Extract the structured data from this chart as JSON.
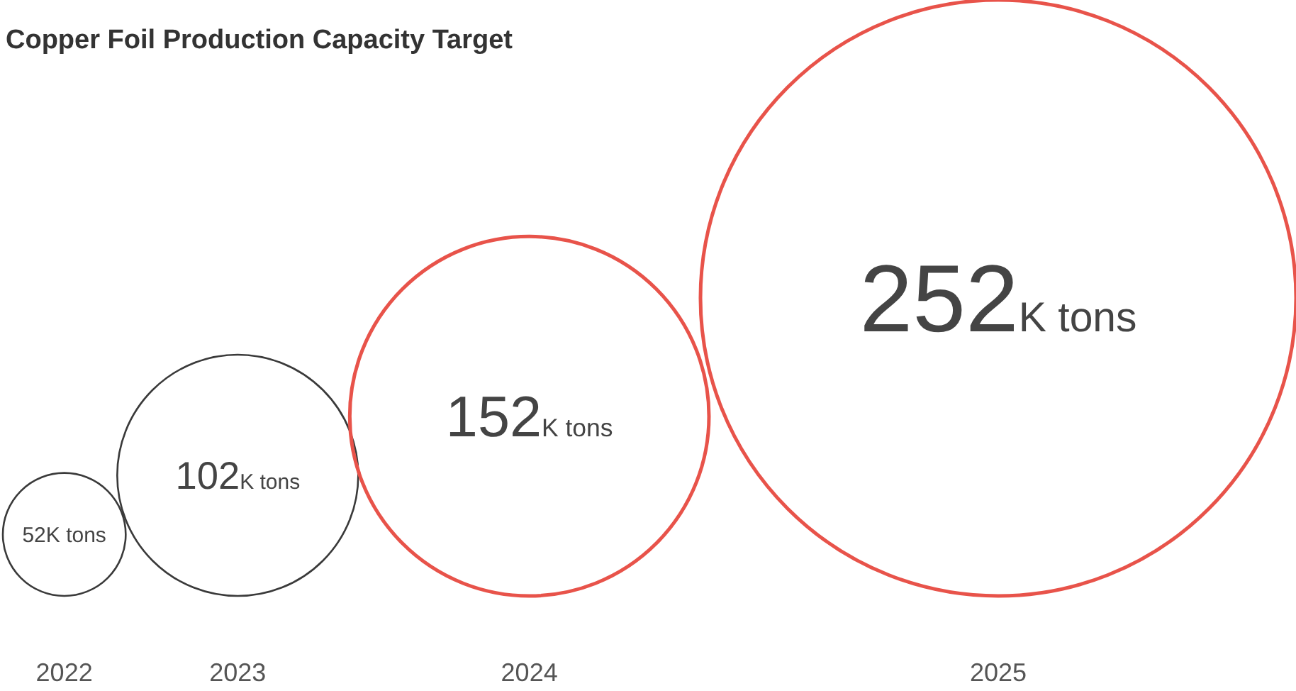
{
  "chart_data": {
    "type": "other",
    "title": "Copper Foil Production Capacity Target",
    "categories": [
      "2022",
      "2023",
      "2024",
      "2025"
    ],
    "values": [
      52,
      102,
      152,
      252
    ],
    "value_labels": [
      "52K tons",
      "102K tons",
      "152K tons",
      "252K tons"
    ],
    "colors": [
      "#3a3a3a",
      "#3a3a3a",
      "#e8534a",
      "#e8534a"
    ]
  }
}
